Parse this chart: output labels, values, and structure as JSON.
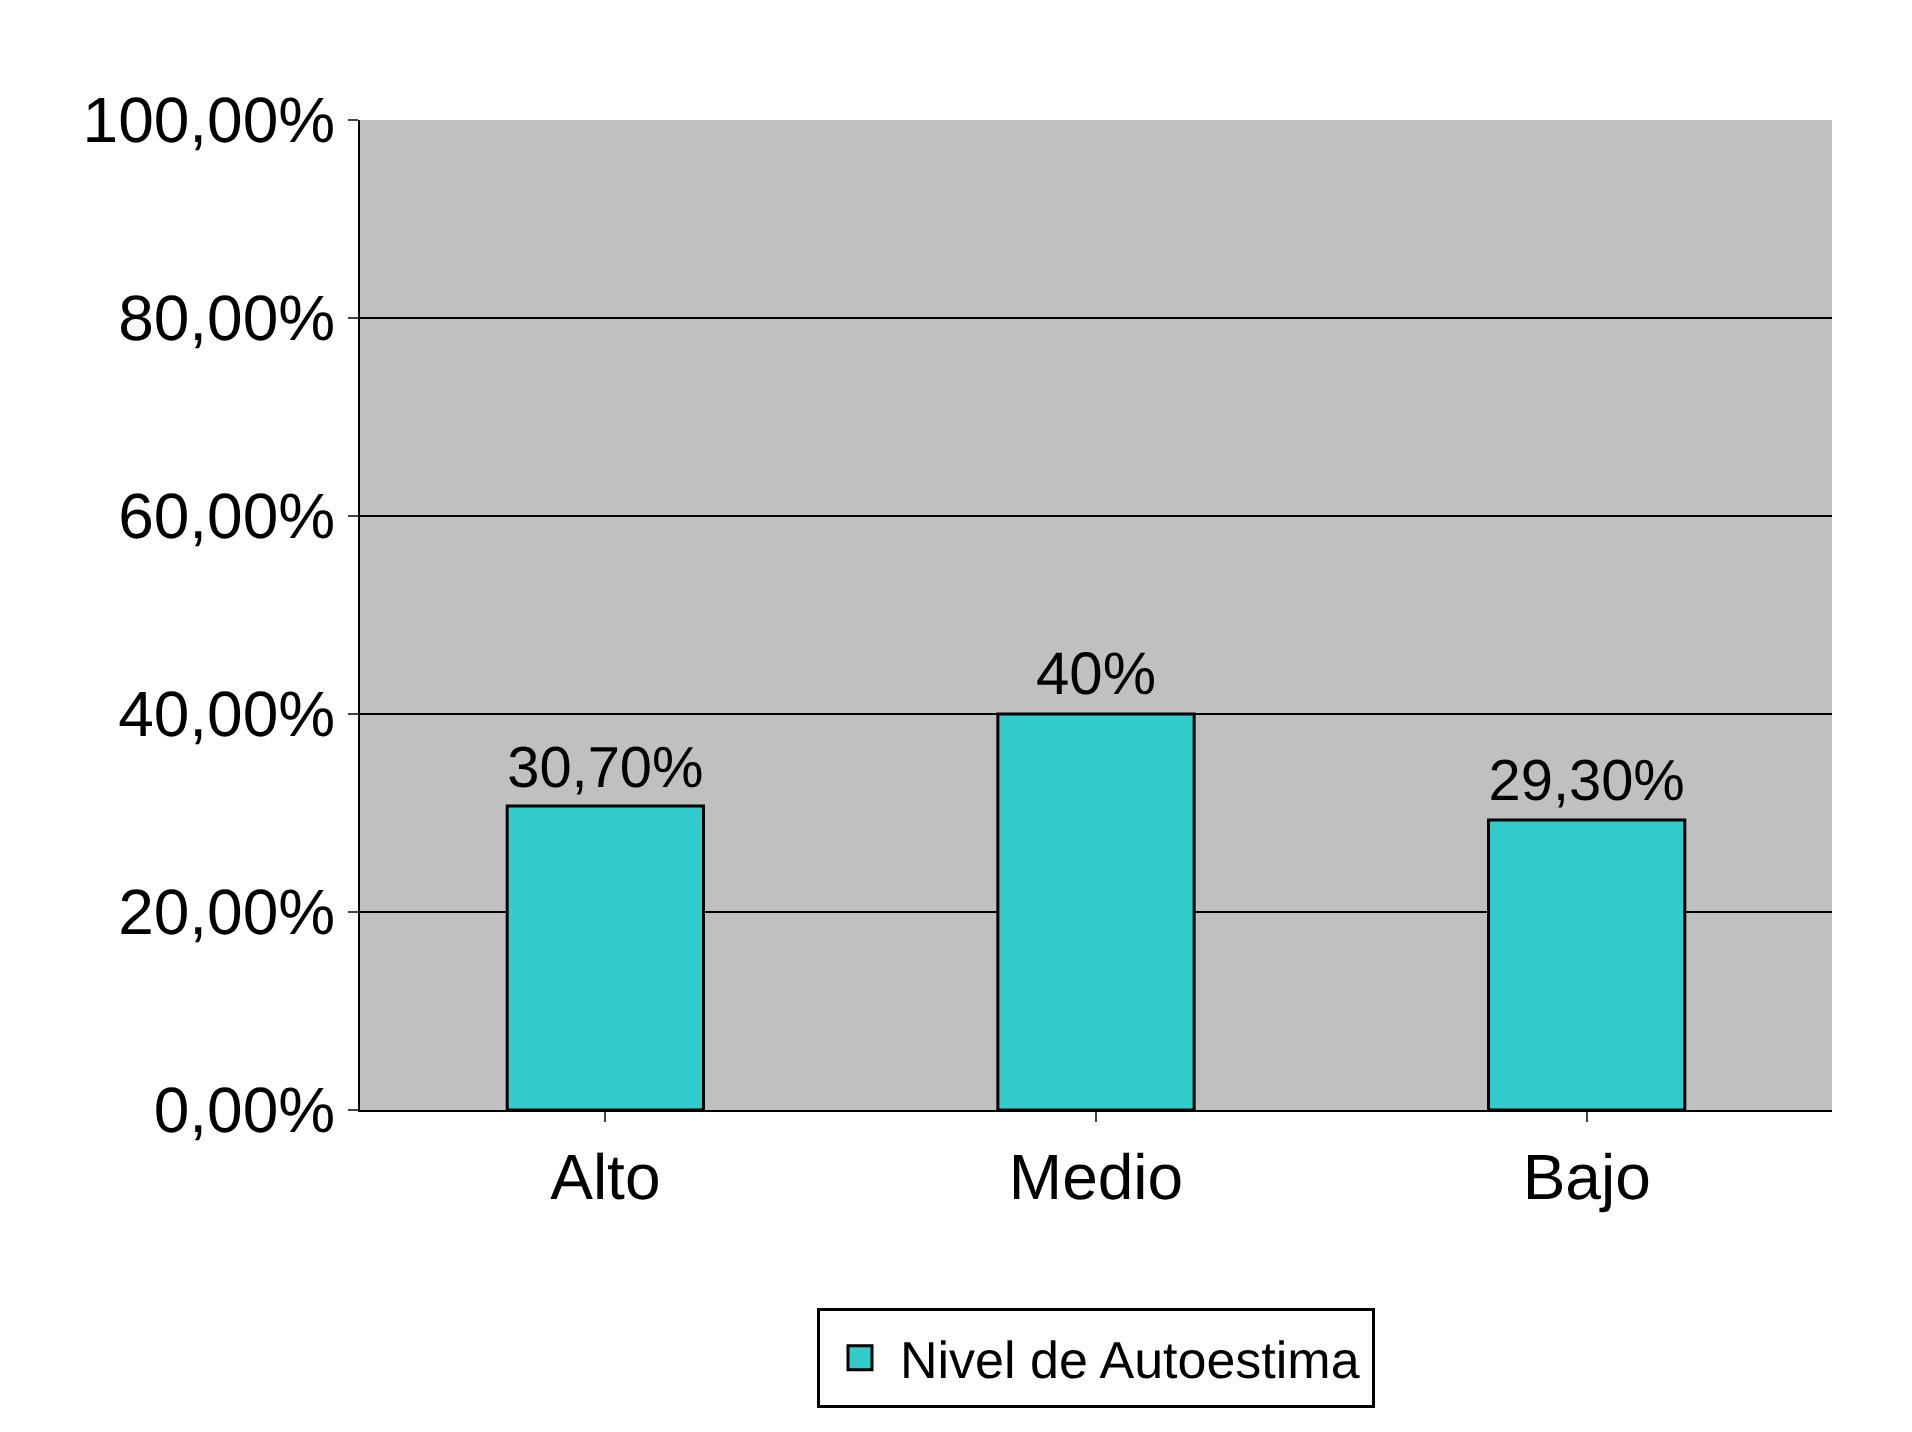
{
  "chart_data": {
    "type": "bar",
    "categories": [
      "Alto",
      "Medio",
      "Bajo"
    ],
    "series": [
      {
        "name": "Nivel de Autoestima",
        "color": "#33cccc",
        "values": [
          30.7,
          40,
          29.3
        ],
        "value_labels": [
          "30,70%",
          "40%",
          "29,30%"
        ]
      }
    ],
    "ylim": [
      0,
      100
    ],
    "yticks": [
      {
        "value": 0,
        "label": "0,00%"
      },
      {
        "value": 20,
        "label": "20,00%"
      },
      {
        "value": 40,
        "label": "40,00%"
      },
      {
        "value": 60,
        "label": "60,00%"
      },
      {
        "value": 80,
        "label": "80,00%"
      },
      {
        "value": 100,
        "label": "100,00%"
      }
    ],
    "grid": "y",
    "legend": "bottom"
  }
}
